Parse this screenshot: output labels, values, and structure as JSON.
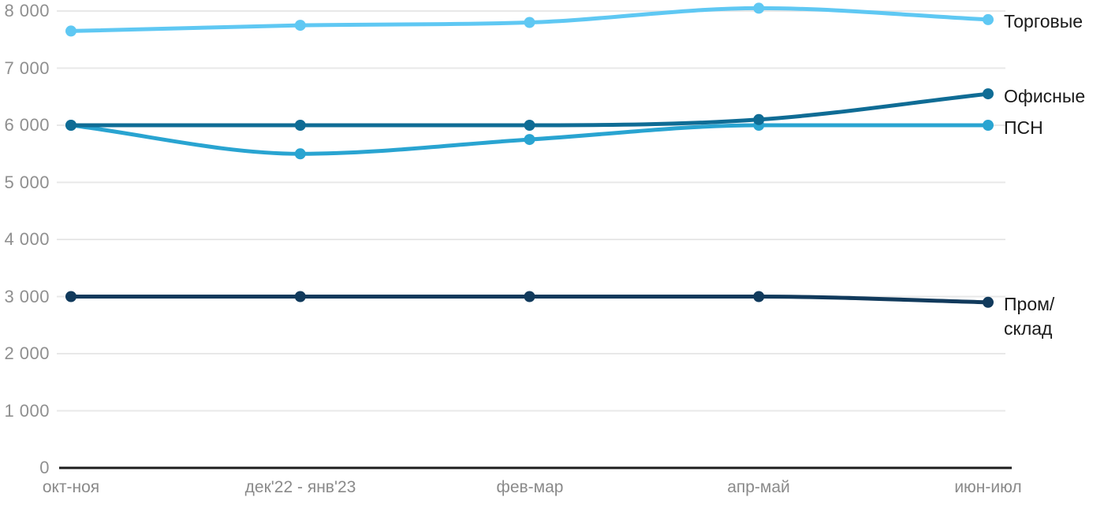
{
  "chart_data": {
    "type": "line",
    "title": "",
    "xlabel": "",
    "ylabel": "",
    "grid": true,
    "legend_position": "right-of-line-ends",
    "categories": [
      "окт-ноя",
      "дек'22 - янв'23",
      "фев-мар",
      "апр-май",
      "июн-июл"
    ],
    "series": [
      {
        "id": "retail",
        "name": "Торговые",
        "color": "#5FC8F3",
        "values": [
          7650,
          7750,
          7800,
          8050,
          7850
        ],
        "label_lines": [
          "Торговые"
        ]
      },
      {
        "id": "psn",
        "name": "ПСН",
        "color": "#29A4D1",
        "values": [
          6000,
          5500,
          5750,
          6000,
          6000
        ],
        "label_lines": [
          "ПСН"
        ]
      },
      {
        "id": "office",
        "name": "Офисные",
        "color": "#0F6C95",
        "values": [
          6000,
          6000,
          6000,
          6100,
          6550
        ],
        "label_lines": [
          "Офисные"
        ]
      },
      {
        "id": "industrial",
        "name": "Пром/склад",
        "color": "#113A5C",
        "values": [
          3000,
          3000,
          3000,
          3000,
          2900
        ],
        "label_lines": [
          "Пром/",
          "склад"
        ]
      }
    ],
    "yticks": {
      "values": [
        0,
        1000,
        2000,
        3000,
        4000,
        5000,
        6000,
        7000,
        8000
      ],
      "labels": [
        "0",
        "1 000",
        "2 000",
        "3 000",
        "4 000",
        "5 000",
        "6 000",
        "7 000",
        "8 000"
      ]
    },
    "ylim": [
      0,
      8300
    ]
  },
  "styles": {
    "background": "#ffffff",
    "grid_color": "#e8e8e8",
    "axis_color": "#1c1c1c",
    "tick_label_color": "#8f8f8f",
    "legend_text_color": "#1a1a1a"
  }
}
